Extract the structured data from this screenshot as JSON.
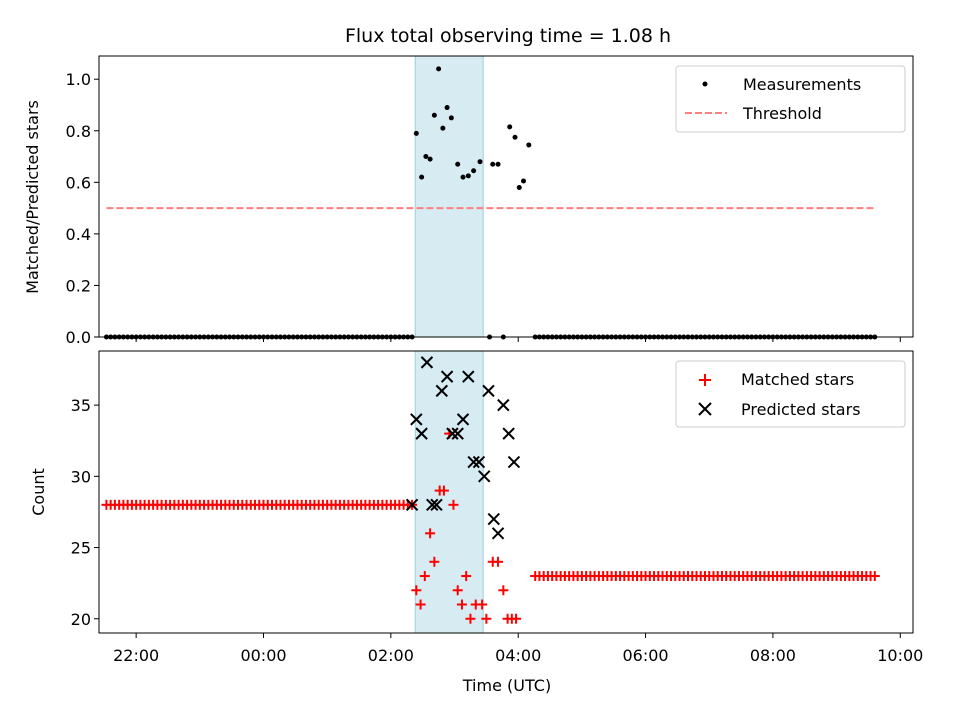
{
  "chart_data": [
    {
      "type": "scatter",
      "title": "Flux total observing time = 1.08 h",
      "xlabel": "",
      "ylabel": "Matched/Predicted stars",
      "ylim": [
        0,
        1.09
      ],
      "yticks": [
        "0.0",
        "0.2",
        "0.4",
        "0.6",
        "0.8",
        "1.0"
      ],
      "xlim": [
        "21:25",
        "10:12"
      ],
      "x_tick_labels_visible": false,
      "shaded_interval": [
        "02:23",
        "03:27"
      ],
      "shaded_color": "#add8e6",
      "legend": {
        "placement": "top-right",
        "entries": [
          "Measurements",
          "Threshold"
        ]
      },
      "series": [
        {
          "name": "Measurements",
          "marker": "dot",
          "color": "#000000",
          "zero_ranges": [
            {
              "from": "21:32",
              "to": "02:20",
              "step_minutes": 4
            },
            {
              "from": "04:16",
              "to": "09:36",
              "step_minutes": 4
            }
          ],
          "points": [
            {
              "x": "02:24",
              "y": 0.79
            },
            {
              "x": "02:29",
              "y": 0.62
            },
            {
              "x": "02:33",
              "y": 0.7
            },
            {
              "x": "02:37",
              "y": 0.69
            },
            {
              "x": "02:41",
              "y": 0.86
            },
            {
              "x": "02:45",
              "y": 1.04
            },
            {
              "x": "02:49",
              "y": 0.81
            },
            {
              "x": "02:53",
              "y": 0.89
            },
            {
              "x": "02:57",
              "y": 0.85
            },
            {
              "x": "03:03",
              "y": 0.67
            },
            {
              "x": "03:08",
              "y": 0.62
            },
            {
              "x": "03:13",
              "y": 0.625
            },
            {
              "x": "03:18",
              "y": 0.645
            },
            {
              "x": "03:24",
              "y": 0.68
            },
            {
              "x": "03:33",
              "y": 0.0
            },
            {
              "x": "03:36",
              "y": 0.67
            },
            {
              "x": "03:41",
              "y": 0.67
            },
            {
              "x": "03:46",
              "y": 0.0
            },
            {
              "x": "03:52",
              "y": 0.815
            },
            {
              "x": "03:57",
              "y": 0.775
            },
            {
              "x": "04:01",
              "y": 0.58
            },
            {
              "x": "04:05",
              "y": 0.605
            },
            {
              "x": "04:10",
              "y": 0.745
            }
          ]
        },
        {
          "name": "Threshold",
          "type": "line",
          "style": "dashed",
          "color": "#ff7f7f",
          "x": [
            "21:32",
            "09:36"
          ],
          "y": [
            0.5,
            0.5
          ]
        }
      ]
    },
    {
      "type": "scatter",
      "title": "",
      "xlabel": "Time (UTC)",
      "ylabel": "Count",
      "ylim": [
        19,
        38.8
      ],
      "yticks": [
        "20",
        "25",
        "30",
        "35"
      ],
      "xlim": [
        "21:25",
        "10:12"
      ],
      "xticks": [
        "22:00",
        "00:00",
        "02:00",
        "04:00",
        "06:00",
        "08:00",
        "10:00"
      ],
      "shaded_interval": [
        "02:23",
        "03:27"
      ],
      "shaded_color": "#add8e6",
      "legend": {
        "placement": "top-right",
        "entries": [
          "Matched stars",
          "Predicted stars"
        ]
      },
      "series": [
        {
          "name": "Matched stars",
          "marker": "plus",
          "color": "#ff0000",
          "constant_ranges": [
            {
              "from": "21:32",
              "to": "02:20",
              "step_minutes": 4,
              "y": 28
            },
            {
              "from": "04:16",
              "to": "09:36",
              "step_minutes": 4,
              "y": 23
            }
          ],
          "points": [
            {
              "x": "02:24",
              "y": 22
            },
            {
              "x": "02:28",
              "y": 21
            },
            {
              "x": "02:32",
              "y": 23
            },
            {
              "x": "02:37",
              "y": 26
            },
            {
              "x": "02:41",
              "y": 24
            },
            {
              "x": "02:46",
              "y": 29
            },
            {
              "x": "02:50",
              "y": 29
            },
            {
              "x": "02:55",
              "y": 33
            },
            {
              "x": "02:59",
              "y": 28
            },
            {
              "x": "03:03",
              "y": 22
            },
            {
              "x": "03:07",
              "y": 21
            },
            {
              "x": "03:11",
              "y": 23
            },
            {
              "x": "03:15",
              "y": 20
            },
            {
              "x": "03:20",
              "y": 21
            },
            {
              "x": "03:26",
              "y": 21
            },
            {
              "x": "03:30",
              "y": 20
            },
            {
              "x": "03:36",
              "y": 24
            },
            {
              "x": "03:41",
              "y": 24
            },
            {
              "x": "03:46",
              "y": 22
            },
            {
              "x": "03:50",
              "y": 20
            },
            {
              "x": "03:54",
              "y": 20
            },
            {
              "x": "03:58",
              "y": 20
            }
          ]
        },
        {
          "name": "Predicted stars",
          "marker": "x",
          "color": "#000000",
          "points": [
            {
              "x": "02:20",
              "y": 28
            },
            {
              "x": "02:24",
              "y": 34
            },
            {
              "x": "02:29",
              "y": 33
            },
            {
              "x": "02:34",
              "y": 38
            },
            {
              "x": "02:39",
              "y": 28
            },
            {
              "x": "02:43",
              "y": 28
            },
            {
              "x": "02:48",
              "y": 36
            },
            {
              "x": "02:53",
              "y": 37
            },
            {
              "x": "02:58",
              "y": 33
            },
            {
              "x": "03:03",
              "y": 33
            },
            {
              "x": "03:08",
              "y": 34
            },
            {
              "x": "03:13",
              "y": 37
            },
            {
              "x": "03:18",
              "y": 31
            },
            {
              "x": "03:23",
              "y": 31
            },
            {
              "x": "03:28",
              "y": 30
            },
            {
              "x": "03:32",
              "y": 36
            },
            {
              "x": "03:37",
              "y": 27
            },
            {
              "x": "03:41",
              "y": 26
            },
            {
              "x": "03:46",
              "y": 35
            },
            {
              "x": "03:51",
              "y": 33
            },
            {
              "x": "03:56",
              "y": 31
            }
          ]
        }
      ]
    }
  ]
}
